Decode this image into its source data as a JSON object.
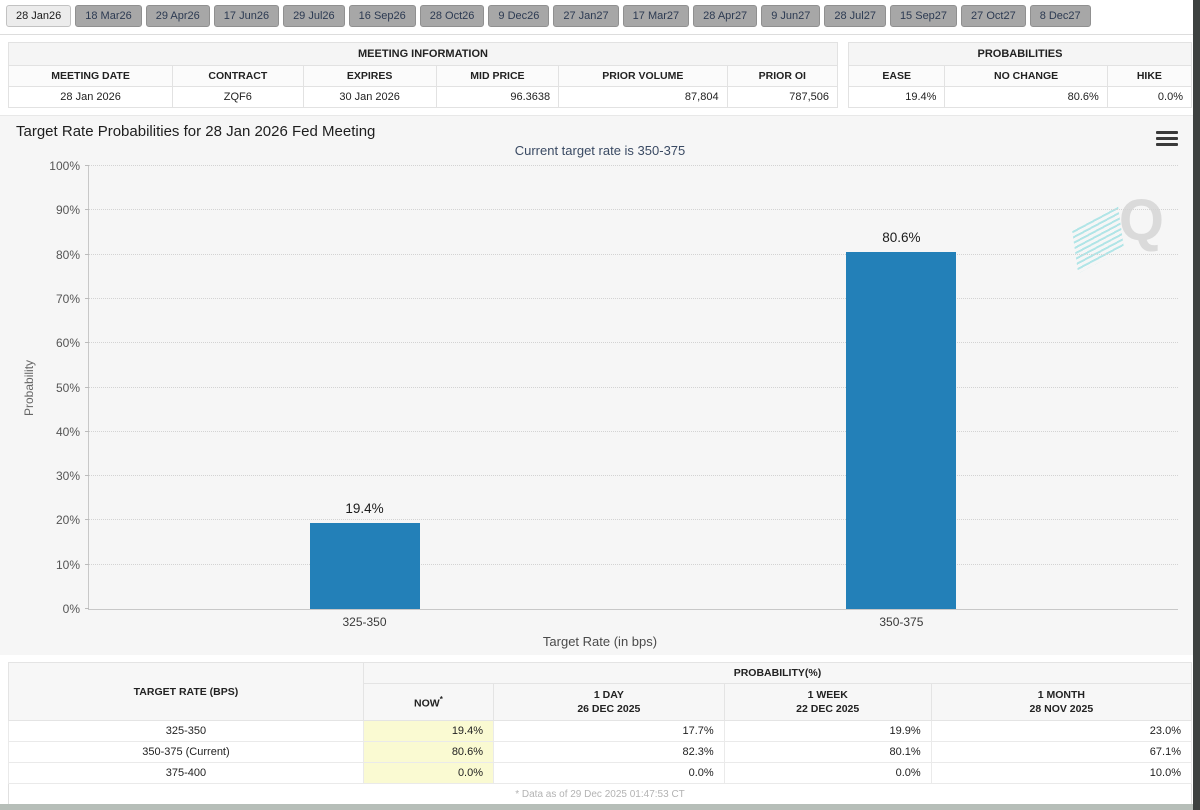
{
  "tabs": {
    "items": [
      "28 Jan26",
      "18 Mar26",
      "29 Apr26",
      "17 Jun26",
      "29 Jul26",
      "16 Sep26",
      "28 Oct26",
      "9 Dec26",
      "27 Jan27",
      "17 Mar27",
      "28 Apr27",
      "9 Jun27",
      "28 Jul27",
      "15 Sep27",
      "27 Oct27",
      "8 Dec27"
    ],
    "selected_index": 0
  },
  "meeting_info": {
    "title": "MEETING INFORMATION",
    "headers": [
      "MEETING DATE",
      "CONTRACT",
      "EXPIRES",
      "MID PRICE",
      "PRIOR VOLUME",
      "PRIOR OI"
    ],
    "values": [
      "28 Jan 2026",
      "ZQF6",
      "30 Jan 2026",
      "96.3638",
      "87,804",
      "787,506"
    ]
  },
  "probabilities_box": {
    "title": "PROBABILITIES",
    "headers": [
      "EASE",
      "NO CHANGE",
      "HIKE"
    ],
    "values": [
      "19.4%",
      "80.6%",
      "0.0%"
    ]
  },
  "chart": {
    "title": "Target Rate Probabilities for 28 Jan 2026 Fed Meeting",
    "subtitle": "Current target rate is 350-375",
    "watermark": "Q"
  },
  "chart_data": {
    "type": "bar",
    "categories": [
      "325-350",
      "350-375"
    ],
    "values": [
      19.4,
      80.6
    ],
    "bar_labels": [
      "19.4%",
      "80.6%"
    ],
    "title": "Target Rate Probabilities for 28 Jan 2026 Fed Meeting",
    "subtitle": "Current target rate is 350-375",
    "xlabel": "Target Rate (in bps)",
    "ylabel": "Probability",
    "ylim": [
      0,
      100
    ],
    "ytick_step": 10,
    "grid": "dotted-horizontal",
    "legend": "none",
    "bar_color": "#2380b8",
    "bar_centers_pct": [
      25.3,
      74.6
    ]
  },
  "history_table": {
    "col1_header": "TARGET RATE (BPS)",
    "group_header": "PROBABILITY(%)",
    "sub_headers": [
      {
        "line1": "NOW",
        "sup": "*",
        "line2": ""
      },
      {
        "line1": "1 DAY",
        "line2": "26 DEC 2025"
      },
      {
        "line1": "1 WEEK",
        "line2": "22 DEC 2025"
      },
      {
        "line1": "1 MONTH",
        "line2": "28 NOV 2025"
      }
    ],
    "rows": [
      {
        "label": "325-350",
        "now": "19.4%",
        "day": "17.7%",
        "week": "19.9%",
        "month": "23.0%"
      },
      {
        "label": "350-375 (Current)",
        "now": "80.6%",
        "day": "82.3%",
        "week": "80.1%",
        "month": "67.1%"
      },
      {
        "label": "375-400",
        "now": "0.0%",
        "day": "0.0%",
        "week": "0.0%",
        "month": "10.0%"
      }
    ],
    "footnote": "* Data as of 29 Dec 2025 01:47:53 CT"
  }
}
